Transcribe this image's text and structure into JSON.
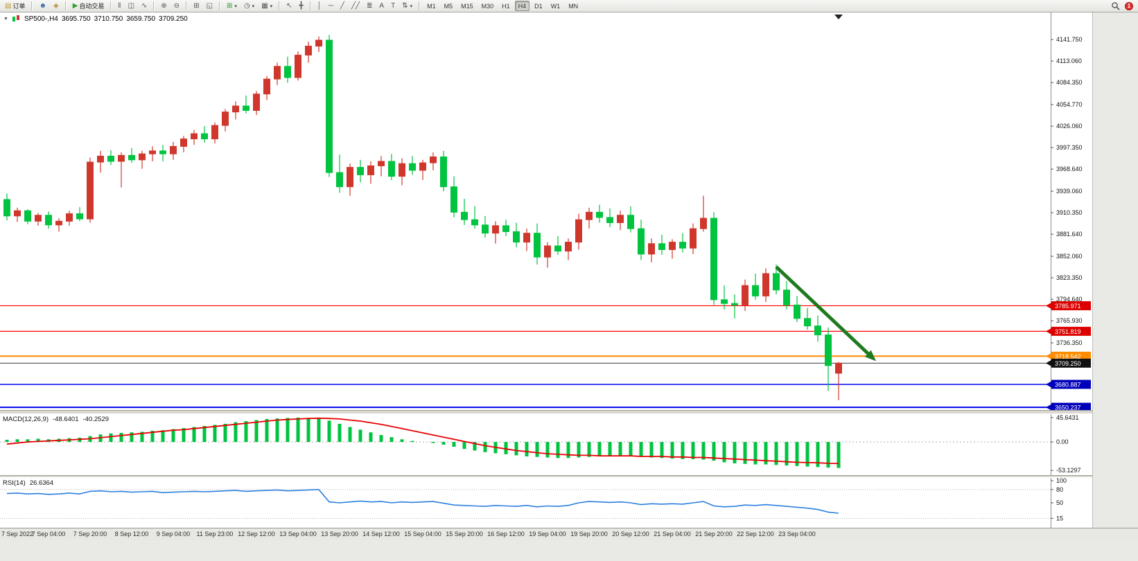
{
  "toolbar": {
    "groups": [
      {
        "items": [
          {
            "name": "new-order-button",
            "icon": "▤",
            "icon_color": "#c29b2e",
            "label": "订单"
          }
        ]
      },
      {
        "items": [
          {
            "name": "community-button",
            "icon": "☻",
            "icon_color": "#3a6ea5"
          },
          {
            "name": "market-button",
            "icon": "◈",
            "icon_color": "#b98b2f"
          }
        ]
      },
      {
        "items": [
          {
            "name": "auto-trading-button",
            "icon": "▶",
            "icon_color": "#2f9e2f",
            "label": "自动交易"
          }
        ]
      },
      {
        "items": [
          {
            "name": "bar-chart-button",
            "icon": "‖"
          },
          {
            "name": "candlestick-chart-button",
            "icon": "◫"
          },
          {
            "name": "line-chart-button",
            "icon": "∿"
          }
        ]
      },
      {
        "items": [
          {
            "name": "zoom-in-button",
            "icon": "⊕"
          },
          {
            "name": "zoom-out-button",
            "icon": "⊖"
          }
        ]
      },
      {
        "items": [
          {
            "name": "indicators-button",
            "icon": "⊞"
          },
          {
            "name": "tile-windows-button",
            "icon": "◱"
          }
        ]
      },
      {
        "items": [
          {
            "name": "new-chart-button",
            "icon": "⊞",
            "icon_color": "#2f9e2f",
            "caret": true
          },
          {
            "name": "profiles-button",
            "icon": "◷",
            "caret": true
          },
          {
            "name": "templates-button",
            "icon": "▦",
            "caret": true
          }
        ]
      },
      {
        "items": [
          {
            "name": "cursor-tool-button",
            "icon": "↖"
          },
          {
            "name": "crosshair-tool-button",
            "icon": "╋"
          }
        ]
      },
      {
        "items": [
          {
            "name": "vertical-line-tool-button",
            "icon": "│"
          },
          {
            "name": "horizontal-line-tool-button",
            "icon": "─"
          },
          {
            "name": "trendline-tool-button",
            "icon": "╱"
          },
          {
            "name": "channel-tool-button",
            "icon": "╱╱"
          },
          {
            "name": "fibonacci-tool-button",
            "icon": "≣"
          },
          {
            "name": "text-tool-button",
            "icon": "A"
          },
          {
            "name": "label-tool-button",
            "icon": "T"
          },
          {
            "name": "arrows-tool-button",
            "icon": "⇅",
            "caret": true
          }
        ]
      }
    ],
    "timeframes": [
      "M1",
      "M5",
      "M15",
      "M30",
      "H1",
      "H4",
      "D1",
      "W1",
      "MN"
    ],
    "active_timeframe": "H4",
    "right": {
      "notification_badge": "1"
    }
  },
  "header": {
    "collapse_icon": "▼",
    "symbol": "SP500-,H4",
    "open": "3695.750",
    "high": "3710.750",
    "low": "3659.750",
    "close": "3709.250"
  },
  "price_axis": {
    "ticks": [
      "4141.750",
      "4113.060",
      "4084.350",
      "4054.770",
      "4026.060",
      "3997.350",
      "3968.640",
      "3939.060",
      "3910.350",
      "3881.640",
      "3852.060",
      "3823.350",
      "3794.640",
      "3765.930",
      "3736.350"
    ]
  },
  "time_axis": {
    "labels": [
      "7 Sep 2022",
      "7 Sep 04:00",
      "7 Sep 20:00",
      "8 Sep 12:00",
      "9 Sep 04:00",
      "11 Sep 23:00",
      "12 Sep 12:00",
      "13 Sep 04:00",
      "13 Sep 20:00",
      "14 Sep 12:00",
      "15 Sep 04:00",
      "15 Sep 20:00",
      "16 Sep 12:00",
      "19 Sep 04:00",
      "19 Sep 20:00",
      "20 Sep 12:00",
      "21 Sep 04:00",
      "21 Sep 20:00",
      "22 Sep 12:00",
      "23 Sep 04:00"
    ]
  },
  "chart_data": [
    {
      "type": "candlestick",
      "name": "price",
      "symbol": "SP500-,H4",
      "timeframe": "H4",
      "ylim": [
        3646.6,
        4178
      ],
      "up_color": "#d0372c",
      "down_color": "#00c340",
      "last_bar_marker_bar": 80,
      "hlines": [
        {
          "price": 3785.971,
          "label": "3785.971",
          "line_color": "#ff0000",
          "badge_color": "#dd0000",
          "line_width": 1.2
        },
        {
          "price": 3751.819,
          "label": "3751.819",
          "line_color": "#ff0000",
          "badge_color": "#dd0000",
          "line_width": 1.2
        },
        {
          "price": 3718.542,
          "label": "3718.542",
          "line_color": "#ff8c00",
          "badge_color": "#ff8c00",
          "line_width": 2
        },
        {
          "price": 3709.25,
          "label": "3709.250",
          "line_color": "#3a3a3a",
          "badge_color": "#111111",
          "line_width": 1,
          "current": true
        },
        {
          "price": 3680.887,
          "label": "3680.887",
          "line_color": "#0000ee",
          "badge_color": "#0000bb",
          "line_width": 1.5
        },
        {
          "price": 3650.237,
          "label": "3650.237",
          "line_color": "#0000ee",
          "badge_color": "#0000bb",
          "line_width": 2
        }
      ],
      "annotations": [
        {
          "type": "arrow",
          "from_bar": 74,
          "from_price": 3838,
          "to_bar": 83.6,
          "to_price": 3712,
          "color": "#1f7a1f",
          "width": 5
        }
      ],
      "candles": [
        [
          3928,
          3936,
          3900,
          3906
        ],
        [
          3906,
          3917,
          3898,
          3913
        ],
        [
          3913,
          3915,
          3895,
          3899
        ],
        [
          3899,
          3910,
          3893,
          3907
        ],
        [
          3907,
          3912,
          3889,
          3894
        ],
        [
          3894,
          3903,
          3885,
          3899
        ],
        [
          3899,
          3913,
          3893,
          3909
        ],
        [
          3909,
          3918,
          3899,
          3902
        ],
        [
          3902,
          3984,
          3897,
          3978
        ],
        [
          3978,
          3993,
          3964,
          3986
        ],
        [
          3986,
          3994,
          3974,
          3979
        ],
        [
          3979,
          3991,
          3944,
          3987
        ],
        [
          3987,
          3997,
          3977,
          3981
        ],
        [
          3981,
          3993,
          3969,
          3989
        ],
        [
          3989,
          3999,
          3979,
          3993
        ],
        [
          3993,
          4001,
          3979,
          3989
        ],
        [
          3989,
          4005,
          3981,
          3999
        ],
        [
          3999,
          4013,
          3991,
          4009
        ],
        [
          4009,
          4021,
          4001,
          4016
        ],
        [
          4016,
          4026,
          4004,
          4009
        ],
        [
          4009,
          4031,
          4003,
          4027
        ],
        [
          4027,
          4049,
          4019,
          4045
        ],
        [
          4045,
          4059,
          4035,
          4053
        ],
        [
          4053,
          4067,
          4043,
          4047
        ],
        [
          4047,
          4073,
          4041,
          4069
        ],
        [
          4069,
          4093,
          4061,
          4089
        ],
        [
          4089,
          4111,
          4081,
          4106
        ],
        [
          4106,
          4119,
          4084,
          4091
        ],
        [
          4091,
          4126,
          4087,
          4121
        ],
        [
          4121,
          4139,
          4111,
          4133
        ],
        [
          4133,
          4146,
          4125,
          4141
        ],
        [
          4141,
          4148,
          3958,
          3964
        ],
        [
          3964,
          3988,
          3937,
          3945
        ],
        [
          3945,
          3976,
          3933,
          3971
        ],
        [
          3971,
          3981,
          3951,
          3961
        ],
        [
          3961,
          3979,
          3949,
          3973
        ],
        [
          3973,
          3986,
          3959,
          3979
        ],
        [
          3979,
          3989,
          3954,
          3959
        ],
        [
          3959,
          3983,
          3947,
          3976
        ],
        [
          3976,
          3986,
          3961,
          3967
        ],
        [
          3967,
          3981,
          3954,
          3977
        ],
        [
          3977,
          3991,
          3967,
          3985
        ],
        [
          3985,
          3993,
          3939,
          3945
        ],
        [
          3945,
          3959,
          3904,
          3911
        ],
        [
          3911,
          3929,
          3894,
          3901
        ],
        [
          3901,
          3919,
          3889,
          3894
        ],
        [
          3894,
          3906,
          3877,
          3883
        ],
        [
          3883,
          3899,
          3869,
          3893
        ],
        [
          3893,
          3901,
          3879,
          3885
        ],
        [
          3885,
          3897,
          3864,
          3871
        ],
        [
          3871,
          3889,
          3859,
          3883
        ],
        [
          3883,
          3896,
          3841,
          3851
        ],
        [
          3851,
          3871,
          3837,
          3866
        ],
        [
          3866,
          3879,
          3854,
          3859
        ],
        [
          3859,
          3876,
          3847,
          3871
        ],
        [
          3871,
          3909,
          3861,
          3901
        ],
        [
          3901,
          3917,
          3889,
          3911
        ],
        [
          3911,
          3921,
          3897,
          3904
        ],
        [
          3904,
          3916,
          3891,
          3897
        ],
        [
          3897,
          3913,
          3887,
          3907
        ],
        [
          3907,
          3919,
          3884,
          3889
        ],
        [
          3889,
          3901,
          3847,
          3855
        ],
        [
          3855,
          3876,
          3844,
          3869
        ],
        [
          3869,
          3881,
          3854,
          3861
        ],
        [
          3861,
          3875,
          3849,
          3871
        ],
        [
          3871,
          3883,
          3857,
          3863
        ],
        [
          3863,
          3896,
          3855,
          3889
        ],
        [
          3889,
          3933,
          3885,
          3903
        ],
        [
          3903,
          3911,
          3787,
          3794
        ],
        [
          3794,
          3813,
          3781,
          3789
        ],
        [
          3789,
          3801,
          3769,
          3787
        ],
        [
          3787,
          3821,
          3779,
          3813
        ],
        [
          3813,
          3829,
          3794,
          3799
        ],
        [
          3799,
          3836,
          3791,
          3829
        ],
        [
          3829,
          3841,
          3801,
          3807
        ],
        [
          3807,
          3819,
          3781,
          3787
        ],
        [
          3787,
          3799,
          3764,
          3769
        ],
        [
          3769,
          3783,
          3754,
          3759
        ],
        [
          3759,
          3773,
          3738,
          3747
        ],
        [
          3747,
          3757,
          3672,
          3706
        ],
        [
          3695.75,
          3710.75,
          3659.75,
          3709.25
        ]
      ]
    },
    {
      "type": "bar",
      "name": "MACD",
      "label": "MACD(12,26,9)",
      "value_main": "-48.6401",
      "value_signal": "-40.2529",
      "ylim": [
        -62,
        52
      ],
      "axis_ticks": [
        "45.6431",
        "0.00",
        "-53.1297"
      ],
      "histogram_color": "#00c340",
      "signal_color": "#e60000",
      "histogram": [
        4,
        5,
        5,
        6,
        5,
        6,
        7,
        8,
        11,
        14,
        16,
        17,
        18,
        19,
        21,
        22,
        24,
        26,
        28,
        30,
        32,
        34,
        37,
        39,
        41,
        43,
        44,
        45,
        45.6,
        45,
        44,
        40,
        34,
        28,
        23,
        18,
        13,
        9,
        5,
        2,
        0,
        -2,
        -5,
        -9,
        -13,
        -16,
        -19,
        -21,
        -23,
        -25,
        -27,
        -28,
        -29,
        -30,
        -30,
        -29,
        -28,
        -27,
        -26,
        -26,
        -27,
        -28,
        -29,
        -30,
        -31,
        -32,
        -32,
        -33,
        -35,
        -38,
        -40,
        -41,
        -42,
        -42,
        -43,
        -44,
        -45,
        -46,
        -47,
        -48,
        -48.64
      ],
      "signal": [
        -4,
        -2,
        0,
        1,
        2,
        3,
        4,
        5,
        6,
        8,
        10,
        12,
        14,
        16,
        18,
        20,
        22,
        23,
        25,
        27,
        29,
        31,
        33,
        35,
        37,
        39,
        41,
        42,
        43,
        44,
        44.5,
        44,
        43,
        41,
        39,
        36,
        33,
        29,
        25,
        21,
        17,
        13,
        9,
        5,
        1,
        -3,
        -7,
        -10,
        -13,
        -16,
        -18,
        -20,
        -22,
        -23,
        -24,
        -25,
        -25,
        -26,
        -26,
        -26,
        -26,
        -27,
        -27,
        -27,
        -28,
        -28,
        -29,
        -29,
        -30,
        -31,
        -32,
        -33,
        -34,
        -35,
        -36,
        -37,
        -38,
        -38.5,
        -39,
        -40,
        -40.25
      ]
    },
    {
      "type": "line",
      "name": "RSI",
      "label": "RSI(14)",
      "value": "26.6364",
      "ylim": [
        -6.25,
        106.25
      ],
      "levels": [
        80,
        15
      ],
      "axis_ticks": [
        "100",
        "80",
        "50",
        "15"
      ],
      "line_color": "#2a7fde",
      "values": [
        71,
        72,
        70,
        71,
        69,
        70,
        72,
        70,
        76,
        77,
        75,
        76,
        74,
        75,
        76,
        73,
        74,
        75,
        76,
        75,
        76,
        77,
        78,
        76,
        77,
        78,
        79,
        77,
        78,
        79,
        80,
        52,
        50,
        52,
        54,
        52,
        53,
        50,
        52,
        51,
        52,
        53,
        49,
        45,
        44,
        43,
        42,
        44,
        43,
        42,
        44,
        41,
        43,
        42,
        44,
        50,
        53,
        52,
        51,
        52,
        50,
        46,
        48,
        47,
        48,
        47,
        50,
        53,
        43,
        41,
        42,
        45,
        44,
        46,
        44,
        42,
        40,
        38,
        35,
        29,
        26.6
      ]
    }
  ]
}
